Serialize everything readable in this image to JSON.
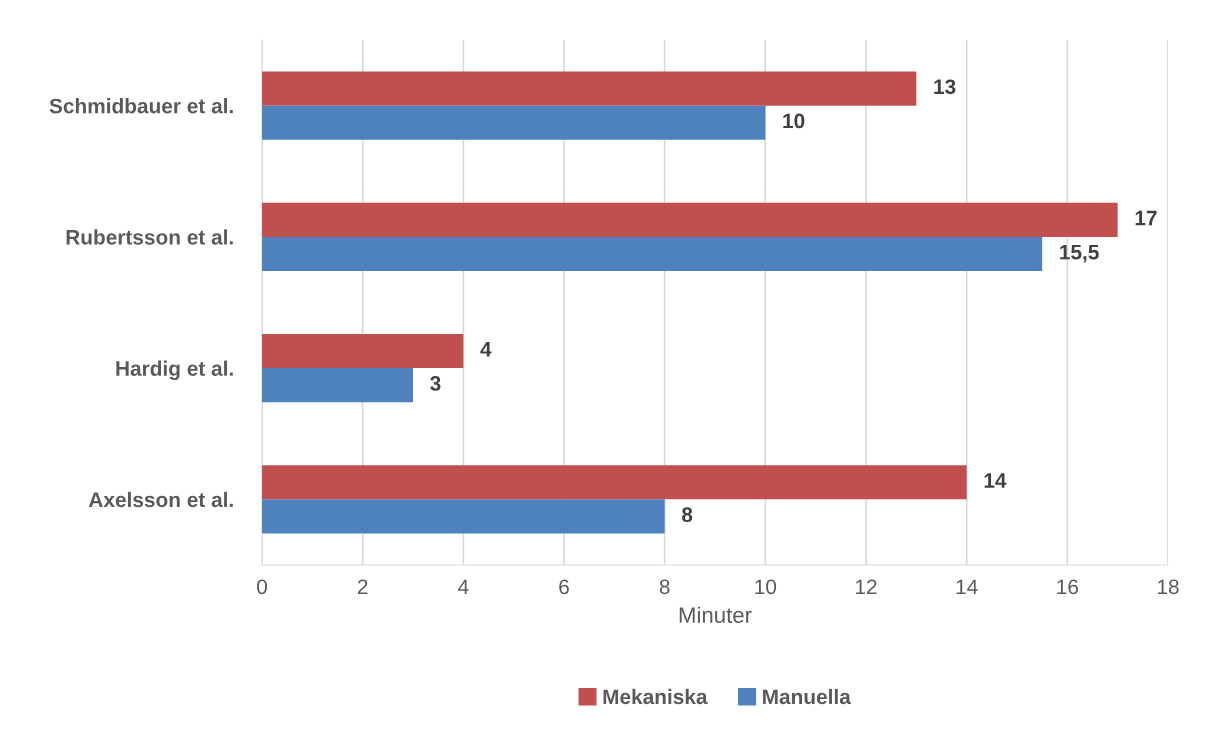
{
  "chart_data": {
    "type": "bar",
    "orientation": "horizontal",
    "xlabel": "Minuter",
    "categories": [
      "Schmidbauer et al.",
      "Rubertsson et al.",
      "Hardig et al.",
      "Axelsson et al."
    ],
    "series": [
      {
        "name": "Mekaniska",
        "color": "#c0504d",
        "values": [
          13,
          17,
          4,
          14
        ],
        "value_labels": [
          "13",
          "17",
          "4",
          "14"
        ]
      },
      {
        "name": "Manuella",
        "color": "#4f81bd",
        "values": [
          10,
          15.5,
          3,
          8
        ],
        "value_labels": [
          "10",
          "15,5",
          "3",
          "8"
        ]
      }
    ],
    "xlim": [
      0,
      18
    ],
    "xticks": [
      0,
      2,
      4,
      6,
      8,
      10,
      12,
      14,
      16,
      18
    ],
    "grid": "x",
    "legend": "bottom"
  }
}
